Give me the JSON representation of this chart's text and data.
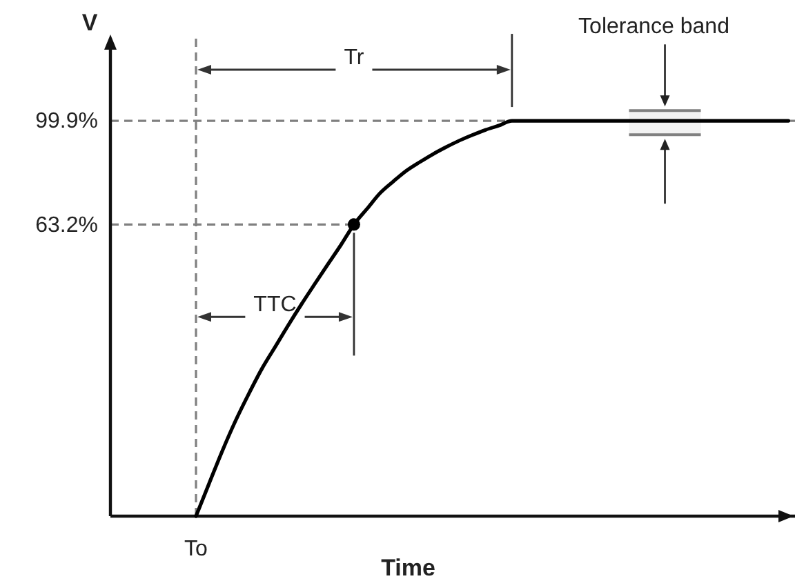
{
  "chart_data": {
    "type": "line",
    "xlabel": "Time",
    "ylabel": "V",
    "categories": [
      null,
      null,
      null,
      null,
      null,
      null,
      "To",
      null,
      null,
      null,
      null,
      null,
      null,
      null,
      null,
      null,
      null,
      null,
      null,
      null,
      null,
      null,
      null,
      null,
      null,
      null,
      null,
      null,
      null,
      null,
      null,
      null,
      null,
      null,
      null,
      null,
      null,
      null,
      null,
      null,
      null,
      null,
      null,
      null,
      null,
      null,
      null,
      null,
      null,
      null,
      null,
      null
    ],
    "ylim": [
      -40,
      128
    ],
    "yticks": [
      {
        "value": 63.2,
        "label": "63.2%"
      },
      {
        "value": 99.9,
        "label": "99.9%"
      }
    ],
    "series": [
      {
        "type": "line",
        "color": "#000000",
        "values": [
          null,
          null,
          null,
          null,
          null,
          null,
          -40,
          -28.4,
          -16.9,
          -6.3,
          3.2,
          12.1,
          19.8,
          27.5,
          34.9,
          42.0,
          49.0,
          55.9,
          63.2,
          68.8,
          74.4,
          78.5,
          82.3,
          85.3,
          88.1,
          90.6,
          92.9,
          94.9,
          96.7,
          98.2,
          99.9,
          99.9,
          99.9,
          99.9,
          99.9,
          99.9,
          99.9,
          99.9,
          99.9,
          99.9,
          99.9,
          99.9,
          99.9,
          99.9,
          99.9,
          99.9,
          99.9,
          99.9,
          99.9,
          99.9,
          99.9,
          99.9
        ]
      },
      {
        "type": "scatter",
        "color": "#000000",
        "values": [
          null,
          null,
          null,
          null,
          null,
          null,
          null,
          null,
          null,
          null,
          null,
          null,
          null,
          null,
          null,
          null,
          null,
          null,
          63.2,
          null,
          null,
          null,
          null,
          null,
          null,
          null,
          null,
          null,
          null,
          null,
          null,
          null,
          null,
          null,
          null,
          null,
          null,
          null,
          null,
          null,
          null,
          null,
          null,
          null,
          null,
          null,
          null,
          null,
          null,
          null,
          null,
          null
        ]
      }
    ],
    "ref_lines": [
      {
        "axis": "x",
        "value": "To",
        "line_style": "dashed",
        "color": "#808080"
      },
      {
        "axis": "y",
        "value": 99.9,
        "line_style": "dashed",
        "color": "#808080"
      },
      {
        "axis": "y",
        "value": 63.2,
        "line_style": "dashed",
        "color": "#808080"
      }
    ],
    "bands": [
      {
        "axis": "y",
        "from": 95,
        "to": 103.5,
        "label": "Tolerance band",
        "color": "#808080"
      }
    ],
    "annotations": [
      "Tr",
      "TTC"
    ]
  }
}
